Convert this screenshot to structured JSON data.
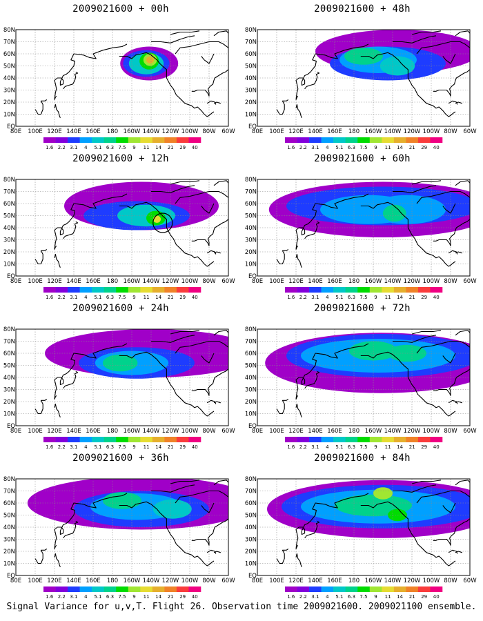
{
  "figure": {
    "caption": "Signal Variance for u,v,T. Flight 26. Observation time 2009021600. 2009021100 ensemble."
  },
  "colors": {
    "land": "#ffffff",
    "coast": "#000000",
    "grid": "#8a8a8a"
  },
  "chart_data": {
    "type": "heatmap",
    "variable": "Signal Variance for u,v,T",
    "x_ticks": [
      "80E",
      "100E",
      "120E",
      "140E",
      "160E",
      "180",
      "160W",
      "140W",
      "120W",
      "100W",
      "80W",
      "60W"
    ],
    "y_ticks": [
      "EQ",
      "10N",
      "20N",
      "30N",
      "40N",
      "50N",
      "60N",
      "70N",
      "80N"
    ],
    "xlim": [
      "80E",
      "60W"
    ],
    "ylim": [
      "EQ",
      "80N"
    ],
    "grid": true,
    "colorbar": {
      "levels": [
        "1.6",
        "2.2",
        "3.1",
        "4",
        "5.1",
        "6.3",
        "7.5",
        "9",
        "11",
        "14",
        "21",
        "29",
        "40"
      ],
      "colors": [
        "#a000c8",
        "#8200dc",
        "#1e3cff",
        "#00a0ff",
        "#00c8c8",
        "#00d28c",
        "#00dc00",
        "#a0e632",
        "#e6dc32",
        "#e6af2d",
        "#f08228",
        "#fa3c3c",
        "#f00082"
      ]
    },
    "panels": [
      {
        "title": "2009021600 + 00h",
        "blobs": [
          {
            "lon": 218,
            "lat": 52,
            "rlon": 30,
            "rlat": 14,
            "level": 0
          },
          {
            "lon": 215,
            "lat": 52,
            "rlon": 24,
            "rlat": 11,
            "level": 2
          },
          {
            "lon": 215,
            "lat": 52,
            "rlon": 18,
            "rlat": 9,
            "level": 4
          },
          {
            "lon": 218,
            "lat": 54,
            "rlon": 10,
            "rlat": 7,
            "level": 6
          },
          {
            "lon": 219,
            "lat": 55,
            "rlon": 7,
            "rlat": 5,
            "level": 7
          },
          {
            "lon": 219,
            "lat": 55,
            "rlon": 4,
            "rlat": 3,
            "level": 9
          }
        ]
      },
      {
        "title": "2009021600 + 48h",
        "blobs": [
          {
            "lon": 225,
            "lat": 62,
            "rlon": 85,
            "rlat": 18,
            "level": 0
          },
          {
            "lon": 215,
            "lat": 52,
            "rlon": 60,
            "rlat": 14,
            "level": 2
          },
          {
            "lon": 205,
            "lat": 55,
            "rlon": 40,
            "rlat": 11,
            "level": 3
          },
          {
            "lon": 190,
            "lat": 58,
            "rlon": 20,
            "rlat": 7,
            "level": 5
          },
          {
            "lon": 225,
            "lat": 50,
            "rlon": 18,
            "rlat": 8,
            "level": 4
          }
        ]
      },
      {
        "title": "2009021600 + 12h",
        "blobs": [
          {
            "lon": 210,
            "lat": 58,
            "rlon": 80,
            "rlat": 20,
            "level": 0
          },
          {
            "lon": 205,
            "lat": 50,
            "rlon": 55,
            "rlat": 12,
            "level": 2
          },
          {
            "lon": 215,
            "lat": 50,
            "rlon": 30,
            "rlat": 9,
            "level": 4
          },
          {
            "lon": 225,
            "lat": 48,
            "rlon": 10,
            "rlat": 6,
            "level": 6
          },
          {
            "lon": 226,
            "lat": 47,
            "rlon": 4,
            "rlat": 3,
            "level": 8
          }
        ]
      },
      {
        "title": "2009021600 + 60h",
        "blobs": [
          {
            "lon": 210,
            "lat": 55,
            "rlon": 118,
            "rlat": 23,
            "level": 0
          },
          {
            "lon": 210,
            "lat": 58,
            "rlon": 100,
            "rlat": 16,
            "level": 2
          },
          {
            "lon": 195,
            "lat": 55,
            "rlon": 50,
            "rlat": 12,
            "level": 3
          },
          {
            "lon": 235,
            "lat": 55,
            "rlon": 40,
            "rlat": 12,
            "level": 3
          },
          {
            "lon": 222,
            "lat": 52,
            "rlon": 12,
            "rlat": 7,
            "level": 5
          }
        ]
      },
      {
        "title": "2009021600 + 24h",
        "blobs": [
          {
            "lon": 220,
            "lat": 60,
            "rlon": 110,
            "rlat": 20,
            "level": 0
          },
          {
            "lon": 205,
            "lat": 52,
            "rlon": 60,
            "rlat": 13,
            "level": 2
          },
          {
            "lon": 200,
            "lat": 52,
            "rlon": 38,
            "rlat": 10,
            "level": 3
          },
          {
            "lon": 188,
            "lat": 52,
            "rlon": 18,
            "rlat": 7,
            "level": 5
          }
        ]
      },
      {
        "title": "2009021600 + 72h",
        "blobs": [
          {
            "lon": 208,
            "lat": 52,
            "rlon": 120,
            "rlat": 25,
            "level": 0
          },
          {
            "lon": 210,
            "lat": 58,
            "rlon": 100,
            "rlat": 18,
            "level": 2
          },
          {
            "lon": 205,
            "lat": 58,
            "rlon": 80,
            "rlat": 14,
            "level": 3
          },
          {
            "lon": 200,
            "lat": 62,
            "rlon": 25,
            "rlat": 8,
            "level": 5
          },
          {
            "lon": 235,
            "lat": 60,
            "rlon": 20,
            "rlat": 7,
            "level": 5
          }
        ]
      },
      {
        "title": "2009021600 + 36h",
        "blobs": [
          {
            "lon": 210,
            "lat": 60,
            "rlon": 118,
            "rlat": 22,
            "level": 0
          },
          {
            "lon": 210,
            "lat": 55,
            "rlon": 70,
            "rlat": 15,
            "level": 2
          },
          {
            "lon": 205,
            "lat": 57,
            "rlon": 48,
            "rlat": 11,
            "level": 3
          },
          {
            "lon": 190,
            "lat": 62,
            "rlon": 20,
            "rlat": 7,
            "level": 5
          },
          {
            "lon": 242,
            "lat": 55,
            "rlon": 20,
            "rlat": 8,
            "level": 4
          }
        ]
      },
      {
        "title": "2009021600 + 84h",
        "blobs": [
          {
            "lon": 210,
            "lat": 55,
            "rlon": 120,
            "rlat": 24,
            "level": 0
          },
          {
            "lon": 210,
            "lat": 57,
            "rlon": 105,
            "rlat": 18,
            "level": 2
          },
          {
            "lon": 205,
            "lat": 57,
            "rlon": 80,
            "rlat": 14,
            "level": 3
          },
          {
            "lon": 200,
            "lat": 58,
            "rlon": 40,
            "rlat": 9,
            "level": 5
          },
          {
            "lon": 210,
            "lat": 68,
            "rlon": 10,
            "rlat": 5,
            "level": 7
          },
          {
            "lon": 225,
            "lat": 50,
            "rlon": 10,
            "rlat": 5,
            "level": 6
          }
        ]
      }
    ]
  }
}
